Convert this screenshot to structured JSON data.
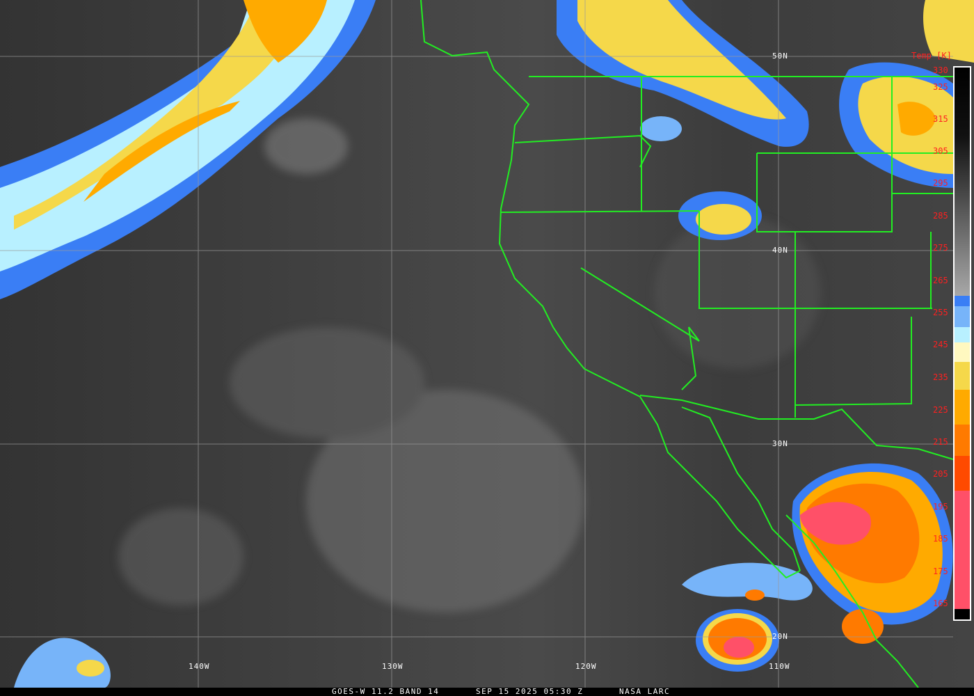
{
  "caption": {
    "product": "GOES-W 11.2 BAND 14",
    "datetime": "SEP 15 2025 05:30 Z",
    "source": "NASA LARC"
  },
  "grid_labels": {
    "lat": [
      "50N",
      "40N",
      "30N",
      "20N"
    ],
    "lon": [
      "140W",
      "130W",
      "120W",
      "110W"
    ]
  },
  "colorbar": {
    "title": "Temp [K]",
    "labels": [
      "330",
      "325",
      "315",
      "305",
      "295",
      "285",
      "275",
      "265",
      "255",
      "245",
      "235",
      "225",
      "215",
      "205",
      "195",
      "185",
      "175",
      "165"
    ],
    "colors": {
      "blue": "#3a7ef5",
      "light_blue": "#77b4f9",
      "cyan": "#b8f0ff",
      "cream": "#fff8c0",
      "yellow": "#f5d84a",
      "amber": "#ffaa00",
      "orange": "#ff7a00",
      "red_orange": "#ff4a00",
      "pink": "#ff5068"
    }
  },
  "colors": {
    "borders": "#22ee22",
    "grid": "#9a9a9a",
    "label_red": "#ff2020"
  }
}
